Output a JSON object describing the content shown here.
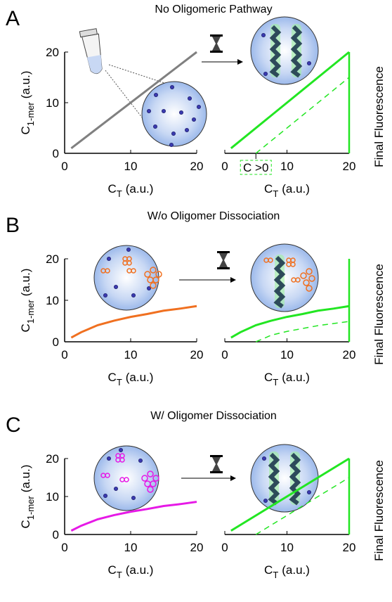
{
  "chart_data": [
    {
      "type": "line",
      "panel": "A",
      "title": "No Oligomeric Pathway",
      "xlim": [
        0,
        20
      ],
      "ylim": [
        0,
        20
      ],
      "xticks": [
        0,
        10,
        20
      ],
      "yticks": [
        0,
        10,
        20
      ],
      "xlabel": {
        "main": "C",
        "sub": "T",
        "rest": "(a.u.)"
      },
      "ylabel": {
        "main": "C",
        "sub": "1-mer",
        "rest": "(a.u.)"
      },
      "series": [
        {
          "color": "#808080",
          "x": [
            1,
            20
          ],
          "values": [
            1,
            20
          ]
        }
      ]
    },
    {
      "type": "line",
      "xlim": [
        0,
        20
      ],
      "ylim": [
        0,
        20
      ],
      "xticks": [
        0,
        10,
        20
      ],
      "xlabel": {
        "main": "C",
        "sub": "T",
        "rest": "(a.u.)"
      },
      "right_label": "Final Fluorescence",
      "right_color": "#22e622",
      "annotation": {
        "text": "C >0",
        "x": 5
      },
      "series": [
        {
          "color": "#22e622",
          "x": [
            1,
            20
          ],
          "values": [
            1,
            20
          ]
        },
        {
          "color": "#22e622",
          "dash": true,
          "x": [
            5,
            20
          ],
          "values": [
            0,
            15
          ]
        }
      ]
    },
    {
      "type": "line",
      "panel": "B",
      "title": "W/o Oligomer Dissociation",
      "xlim": [
        0,
        20
      ],
      "ylim": [
        0,
        20
      ],
      "xticks": [
        0,
        10,
        20
      ],
      "yticks": [
        0,
        10,
        20
      ],
      "xlabel": {
        "main": "C",
        "sub": "T",
        "rest": "(a.u.)"
      },
      "ylabel": {
        "main": "C",
        "sub": "1-mer",
        "rest": "(a.u.)"
      },
      "series": [
        {
          "color": "#f07020",
          "x": [
            1,
            2.5,
            5,
            7.5,
            10,
            12.5,
            15,
            17.5,
            20
          ],
          "values": [
            1,
            2.3,
            4,
            5.1,
            6,
            6.7,
            7.5,
            8,
            8.6
          ]
        }
      ]
    },
    {
      "type": "line",
      "xlim": [
        0,
        20
      ],
      "ylim": [
        0,
        20
      ],
      "xticks": [
        0,
        10,
        20
      ],
      "xlabel": {
        "main": "C",
        "sub": "T",
        "rest": "(a.u.)"
      },
      "right_label": "Final Fluorescence",
      "right_color": "#22e622",
      "series": [
        {
          "color": "#22e622",
          "x": [
            1,
            2.5,
            5,
            7.5,
            10,
            12.5,
            15,
            17.5,
            20
          ],
          "values": [
            1,
            2.3,
            4,
            5.1,
            6,
            6.7,
            7.5,
            8,
            8.6
          ]
        },
        {
          "color": "#22e622",
          "dash": true,
          "x": [
            5,
            7.5,
            10,
            12.5,
            15,
            17.5,
            20
          ],
          "values": [
            0,
            1.6,
            2.5,
            3.2,
            3.9,
            4.4,
            4.9
          ]
        }
      ]
    },
    {
      "type": "line",
      "panel": "C",
      "title": "W/ Oligomer Dissociation",
      "xlim": [
        0,
        20
      ],
      "ylim": [
        0,
        20
      ],
      "xticks": [
        0,
        10,
        20
      ],
      "yticks": [
        0,
        10,
        20
      ],
      "xlabel": {
        "main": "C",
        "sub": "T",
        "rest": "(a.u.)"
      },
      "ylabel": {
        "main": "C",
        "sub": "1-mer",
        "rest": "(a.u.)"
      },
      "series": [
        {
          "color": "#e619e6",
          "x": [
            1,
            2.5,
            5,
            7.5,
            10,
            12.5,
            15,
            17.5,
            20
          ],
          "values": [
            1,
            2.3,
            4,
            5.1,
            6,
            6.7,
            7.5,
            8,
            8.6
          ]
        }
      ]
    },
    {
      "type": "line",
      "xlim": [
        0,
        20
      ],
      "ylim": [
        0,
        20
      ],
      "xticks": [
        0,
        10,
        20
      ],
      "xlabel": {
        "main": "C",
        "sub": "T",
        "rest": "(a.u.)"
      },
      "right_label": "Final Fluorescence",
      "right_color": "#22e622",
      "series": [
        {
          "color": "#22e622",
          "x": [
            1,
            20
          ],
          "values": [
            1,
            20
          ]
        },
        {
          "color": "#22e622",
          "dash": true,
          "x": [
            5,
            20
          ],
          "values": [
            0,
            15
          ]
        }
      ]
    }
  ]
}
